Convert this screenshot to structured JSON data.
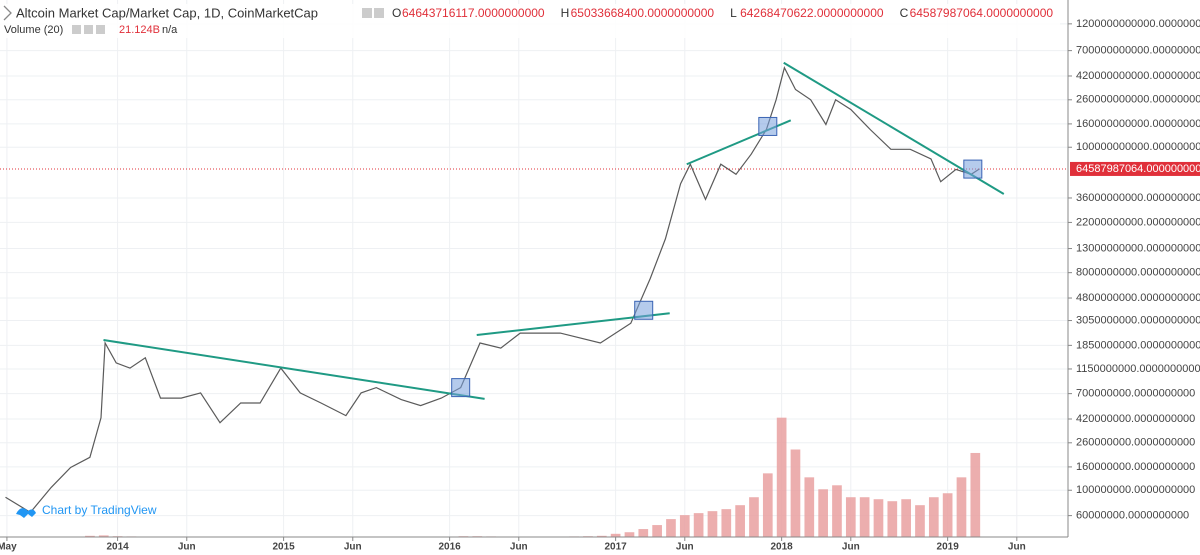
{
  "chart_data": {
    "type": "line",
    "title": "Altcoin Market Cap/Market Cap, 1D, CoinMarketCap",
    "ohlc": [
      {
        "key": "O",
        "value": 64643716117,
        "label": "64643716117.0000000000"
      },
      {
        "key": "H",
        "value": 65033668400,
        "label": "65033668400.0000000000"
      },
      {
        "key": "L",
        "value": 64268470622,
        "label": "64268470622.0000000000"
      },
      {
        "key": "C",
        "value": 64587987064,
        "label": "64587987064.0000000000"
      }
    ],
    "volume_title": "Volume (20)",
    "volume_value": {
      "value": 21124000000,
      "label": "21.124B"
    },
    "volume_extra": "n/a",
    "watermark": "Chart by TradingView",
    "color": "#5a5a5a",
    "log_scale": true,
    "grid": true,
    "x": [
      -0.1,
      1.7,
      3.2,
      4.6,
      6.0,
      6.8,
      7.1,
      7.9,
      8.9,
      10.0,
      11.1,
      12.6,
      14.0,
      15.4,
      16.9,
      18.3,
      19.8,
      21.2,
      22.7,
      24.5,
      25.6,
      26.7,
      28.5,
      29.9,
      31.4,
      32.8,
      34.2,
      35.7,
      37.1,
      40.0,
      42.9,
      45.1,
      46.5,
      47.6,
      48.7,
      49.4,
      50.5,
      51.6,
      52.7,
      53.8,
      54.9,
      55.6,
      56.2,
      57.0,
      58.1,
      59.2,
      59.9,
      61.0,
      62.4,
      63.9,
      65.3,
      66.8,
      67.5,
      68.6,
      69.7,
      70.3
    ],
    "values": [
      87000000,
      64000000,
      106000000,
      158000000,
      194000000,
      430000000,
      1940000000,
      1300000000,
      1170000000,
      1440000000,
      640000000,
      640000000,
      710000000,
      390000000,
      580000000,
      580000000,
      1170000000,
      710000000,
      580000000,
      450000000,
      710000000,
      790000000,
      620000000,
      550000000,
      640000000,
      790000000,
      1940000000,
      1750000000,
      2370000000,
      2370000000,
      1940000000,
      2890000000,
      7100000000,
      15800000000,
      48000000000,
      71000000000,
      35000000000,
      71000000000,
      58000000000,
      87000000000,
      143000000000,
      260000000000,
      496000000000,
      320000000000,
      260000000000,
      158000000000,
      260000000000,
      214000000000,
      143000000000,
      96000000000,
      96000000000,
      79000000000,
      50000000000,
      64000000000,
      58000000000,
      64587987064
    ],
    "last_price": {
      "value": 64587987064,
      "label": "64587987064.0000000000",
      "color": "#e0303a"
    },
    "xlim": [
      -0.5,
      76.7
    ],
    "xticks": [
      {
        "value": 0,
        "label": "May"
      },
      {
        "value": 8,
        "label": "2014"
      },
      {
        "value": 13,
        "label": "Jun"
      },
      {
        "value": 20,
        "label": "2015"
      },
      {
        "value": 25,
        "label": "Jun"
      },
      {
        "value": 32,
        "label": "2016"
      },
      {
        "value": 37,
        "label": "Jun"
      },
      {
        "value": 44,
        "label": "2017"
      },
      {
        "value": 49,
        "label": "Jun"
      },
      {
        "value": 56,
        "label": "2018"
      },
      {
        "value": 61,
        "label": "Jun"
      },
      {
        "value": 68,
        "label": "2019"
      },
      {
        "value": 73,
        "label": "Jun"
      }
    ],
    "ylim": [
      39000000,
      1940000000000
    ],
    "yticks": [
      {
        "value": 1200000000000,
        "label": "1200000000000.0000000000"
      },
      {
        "value": 700000000000,
        "label": "700000000000.0000000000"
      },
      {
        "value": 420000000000,
        "label": "420000000000.0000000000"
      },
      {
        "value": 260000000000,
        "label": "260000000000.0000000000"
      },
      {
        "value": 160000000000,
        "label": "160000000000.0000000000"
      },
      {
        "value": 100000000000,
        "label": "100000000000.0000000000"
      },
      {
        "value": 36000000000,
        "label": "36000000000.0000000000"
      },
      {
        "value": 22000000000,
        "label": "22000000000.0000000000"
      },
      {
        "value": 13000000000,
        "label": "13000000000.0000000000"
      },
      {
        "value": 8000000000,
        "label": "8000000000.0000000000"
      },
      {
        "value": 4800000000,
        "label": "4800000000.0000000000"
      },
      {
        "value": 3050000000,
        "label": "3050000000.0000000000"
      },
      {
        "value": 1850000000,
        "label": "1850000000.0000000000"
      },
      {
        "value": 1150000000,
        "label": "1150000000.0000000000"
      },
      {
        "value": 700000000,
        "label": "700000000.0000000000"
      },
      {
        "value": 420000000,
        "label": "420000000.0000000000"
      },
      {
        "value": 260000000,
        "label": "260000000.0000000000"
      },
      {
        "value": 160000000,
        "label": "160000000.0000000000"
      },
      {
        "value": 100000000,
        "label": "100000000.0000000000"
      },
      {
        "value": 60000000,
        "label": "60000000.0000000000"
      }
    ],
    "y2lim": [
      0,
      135000000000
    ],
    "volume": {
      "axis": "y2",
      "color": "#e9a0a0",
      "x": [
        0,
        1,
        2,
        3,
        4,
        5,
        6,
        7,
        8,
        9,
        10,
        11,
        12,
        13,
        14,
        15,
        16,
        17,
        18,
        19,
        20,
        21,
        22,
        23,
        24,
        25,
        26,
        27,
        28,
        29,
        30,
        31,
        32,
        33,
        34,
        35,
        36,
        37,
        38,
        39,
        40,
        41,
        42,
        43,
        44,
        45,
        46,
        47,
        48,
        49,
        50,
        51,
        52,
        53,
        54,
        55,
        56,
        57,
        58,
        59,
        60,
        61,
        62,
        63,
        64,
        65,
        66,
        67,
        68,
        69,
        70
      ],
      "values": [
        50000000,
        50000000,
        100000000,
        50000000,
        50000000,
        100000000,
        300000000,
        400000000,
        200000000,
        150000000,
        100000000,
        100000000,
        100000000,
        50000000,
        50000000,
        50000000,
        50000000,
        50000000,
        50000000,
        50000000,
        50000000,
        50000000,
        50000000,
        50000000,
        50000000,
        50000000,
        50000000,
        50000000,
        50000000,
        50000000,
        50000000,
        50000000,
        100000000,
        200000000,
        200000000,
        150000000,
        100000000,
        100000000,
        100000000,
        100000000,
        100000000,
        150000000,
        200000000,
        300000000,
        800000000,
        1200000000,
        2000000000,
        3000000000,
        4500000000,
        5500000000,
        6000000000,
        6500000000,
        7000000000,
        8000000000,
        10000000000,
        16000000000,
        30000000000,
        22000000000,
        15000000000,
        12000000000,
        13000000000,
        10000000000,
        10000000000,
        9500000000,
        9000000000,
        9500000000,
        8000000000,
        10000000000,
        11000000000,
        15000000000,
        21124000000
      ]
    },
    "trendline_color": "#1f9a84",
    "trendlines": [
      {
        "x": [
          6.98,
          34.53
        ],
        "y": [
          2060000000,
          630000000
        ]
      },
      {
        "x": [
          33.96,
          47.91
        ],
        "y": [
          2280000000,
          3530000000
        ]
      },
      {
        "x": [
          49.14,
          56.66
        ],
        "y": [
          71000000000,
          172000000000
        ]
      },
      {
        "x": [
          56.15,
          72.06
        ],
        "y": [
          548000000000,
          39000000000
        ]
      }
    ],
    "markers": [
      {
        "x": 32.8,
        "y": 790000000
      },
      {
        "x": 46.03,
        "y": 3750000000
      },
      {
        "x": 55.0,
        "y": 152000000000
      },
      {
        "x": 69.82,
        "y": 64400000000
      }
    ]
  }
}
